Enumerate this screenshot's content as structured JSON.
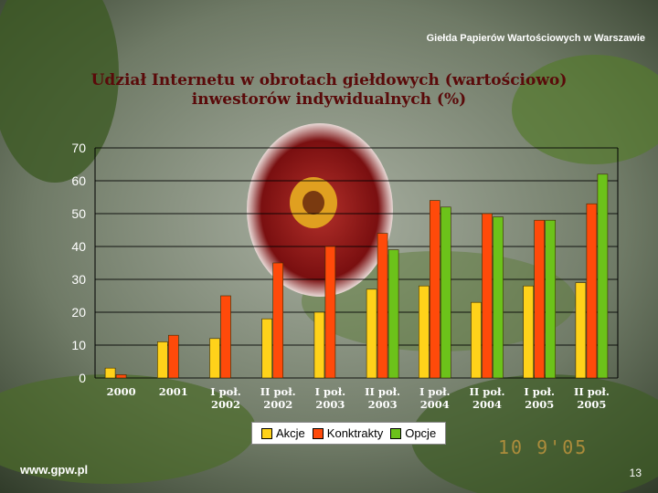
{
  "header": {
    "organization": "Giełda Papierów Wartościowych w Warszawie"
  },
  "title": {
    "line1": "Udział Internetu w obrotach giełdowych (wartościowo)",
    "line2": "inwestorów indywidualnych (%)"
  },
  "chart_data": {
    "type": "bar",
    "categories": [
      [
        "2000"
      ],
      [
        "2001"
      ],
      [
        "I poł.",
        "2002"
      ],
      [
        "II poł.",
        "2002"
      ],
      [
        "I poł.",
        "2003"
      ],
      [
        "II poł.",
        "2003"
      ],
      [
        "I poł.",
        "2004"
      ],
      [
        "II poł.",
        "2004"
      ],
      [
        "I poł.",
        "2005"
      ],
      [
        "II poł.",
        "2005"
      ]
    ],
    "series": [
      {
        "name": "Akcje",
        "color": "#ffd21a",
        "values": [
          3,
          11,
          12,
          18,
          20,
          27,
          28,
          23,
          28,
          29
        ]
      },
      {
        "name": "Konktrakty",
        "color": "#ff4a0a",
        "values": [
          1,
          13,
          25,
          35,
          40,
          44,
          54,
          50,
          48,
          53
        ]
      },
      {
        "name": "Opcje",
        "color": "#6cc21a",
        "values": [
          null,
          null,
          null,
          null,
          null,
          39,
          52,
          49,
          48,
          62
        ]
      }
    ],
    "yticks": [
      0,
      10,
      20,
      30,
      40,
      50,
      60,
      70
    ],
    "ylim": [
      0,
      70
    ],
    "grid": true,
    "legend_position": "bottom"
  },
  "legend": {
    "items": [
      "Akcje",
      "Konktrakty",
      "Opcje"
    ]
  },
  "footer": {
    "url": "www.gpw.pl",
    "page": "13"
  },
  "stamp": "10 9'05"
}
